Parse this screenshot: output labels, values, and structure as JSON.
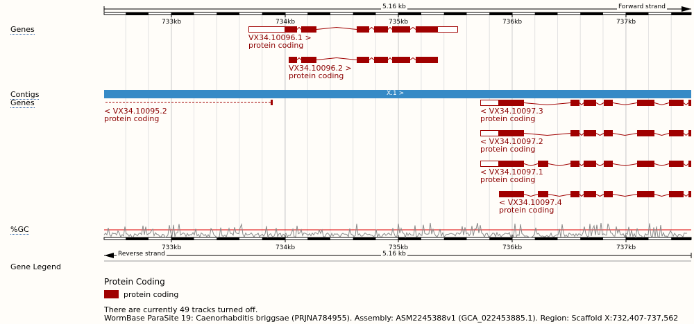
{
  "ruler": {
    "length_label": "5.16 kb",
    "forward_label": "Forward strand",
    "reverse_label": "Reverse strand",
    "ticks": [
      "733kb",
      "734kb",
      "735kb",
      "736kb",
      "737kb"
    ]
  },
  "tracks": {
    "genes_top_label": "Genes",
    "contigs_label": "Contigs",
    "genes_bottom_label": "Genes",
    "gc_label": "%GC",
    "gene_legend_label": "Gene Legend"
  },
  "contig": {
    "label": "X.1 >",
    "color": "#368ac6"
  },
  "forward_genes": [
    {
      "id": "VX34.10096.1 >",
      "biotype": "protein coding"
    },
    {
      "id": "VX34.10096.2 >",
      "biotype": "protein coding"
    }
  ],
  "reverse_genes": [
    {
      "id": "< VX34.10095.2",
      "biotype": "protein coding"
    },
    {
      "id": "< VX34.10097.3",
      "biotype": "protein coding"
    },
    {
      "id": "< VX34.10097.2",
      "biotype": "protein coding"
    },
    {
      "id": "< VX34.10097.1",
      "biotype": "protein coding"
    },
    {
      "id": "< VX34.10097.4",
      "biotype": "protein coding"
    }
  ],
  "legend": {
    "heading": "Protein Coding",
    "items": [
      {
        "label": "protein coding",
        "color": "#a00000"
      }
    ]
  },
  "footer": {
    "tracks_off": "There are currently 49 tracks turned off.",
    "info": "WormBase ParaSite 19: Caenorhabditis briggsae (PRJNA784955). Assembly: ASM2245388v1 (GCA_022453885.1). Region: Scaffold X:732,407-737,562"
  },
  "colors": {
    "gene": "#a00000",
    "gc_line": "#dd0000",
    "gc_trace": "#888888"
  }
}
